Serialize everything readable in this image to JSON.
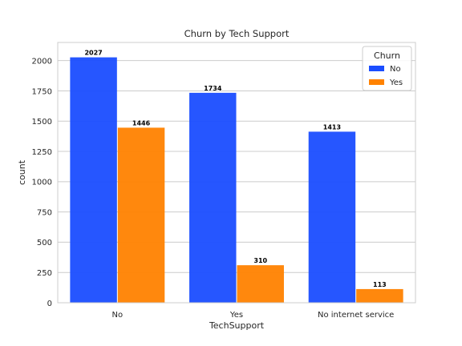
{
  "chart_data": {
    "type": "bar",
    "title": "Churn by Tech Support",
    "xlabel": "TechSupport",
    "ylabel": "count",
    "categories": [
      "No",
      "Yes",
      "No internet service"
    ],
    "series": [
      {
        "name": "No",
        "values": [
          2027,
          1734,
          1413
        ],
        "color": "#1a4dff"
      },
      {
        "name": "Yes",
        "values": [
          1446,
          310,
          113
        ],
        "color": "#ff8200"
      }
    ],
    "ylim": [
      0,
      2150
    ],
    "yticks": [
      0,
      250,
      500,
      750,
      1000,
      1250,
      1500,
      1750,
      2000
    ],
    "grid": true,
    "legend": {
      "title": "Churn",
      "position": "top-right"
    },
    "data_labels": true
  }
}
